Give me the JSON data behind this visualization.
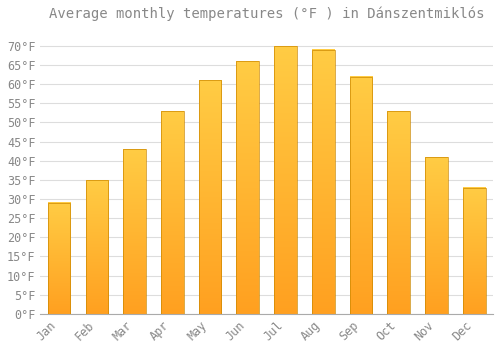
{
  "title": "Average monthly temperatures (°F ) in Dánszentmiklós",
  "months": [
    "Jan",
    "Feb",
    "Mar",
    "Apr",
    "May",
    "Jun",
    "Jul",
    "Aug",
    "Sep",
    "Oct",
    "Nov",
    "Dec"
  ],
  "values": [
    29,
    35,
    43,
    53,
    61,
    66,
    70,
    69,
    62,
    53,
    41,
    33
  ],
  "bar_color_top": "#FFCC44",
  "bar_color_bottom": "#FFA020",
  "bar_edge_color": "#CC8800",
  "background_color": "#FFFFFF",
  "grid_color": "#DDDDDD",
  "text_color": "#888888",
  "ylim": [
    0,
    75
  ],
  "yticks": [
    0,
    5,
    10,
    15,
    20,
    25,
    30,
    35,
    40,
    45,
    50,
    55,
    60,
    65,
    70
  ],
  "title_fontsize": 10,
  "tick_fontsize": 8.5
}
